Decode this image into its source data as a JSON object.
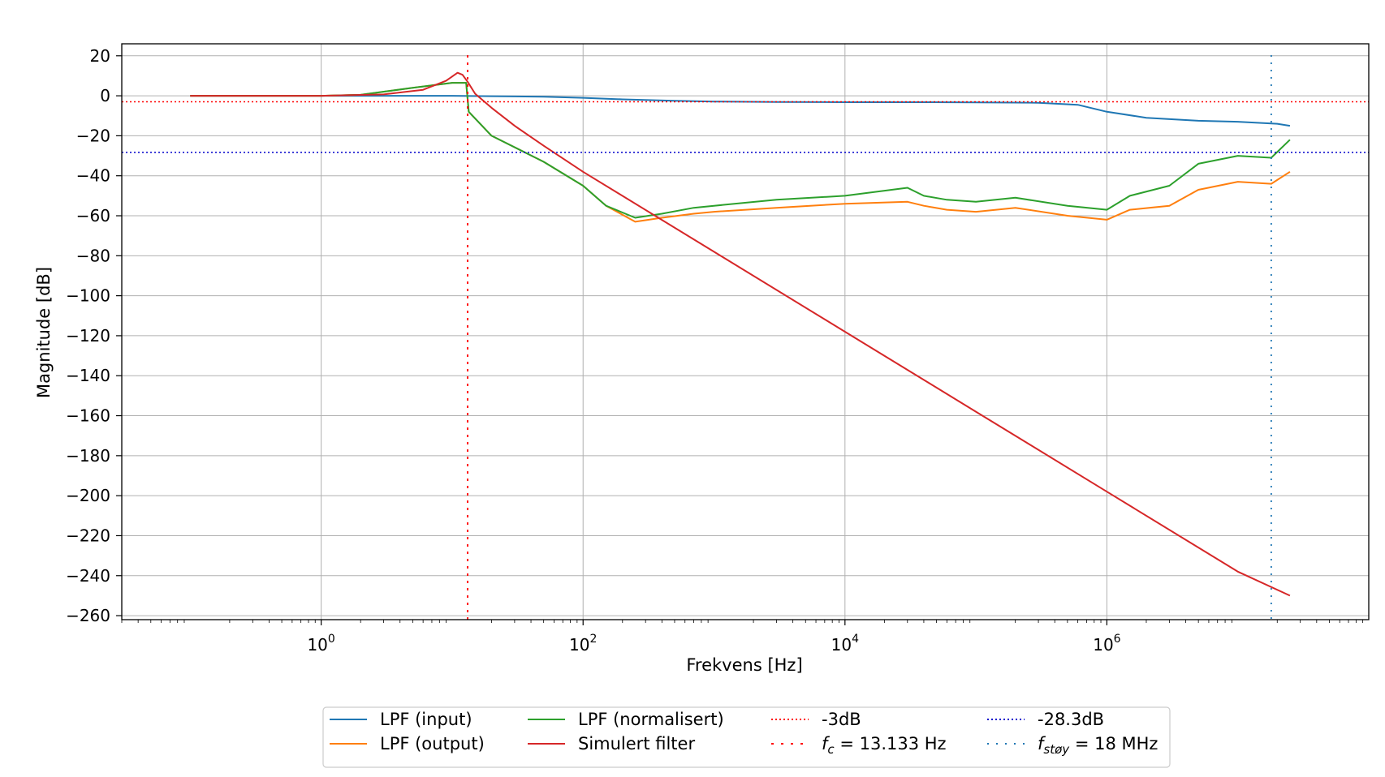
{
  "chart_data": {
    "type": "line",
    "xlabel": "Frekvens [Hz]",
    "ylabel": "Magnitude [dB]",
    "xscale": "log",
    "xlim": [
      0.03,
      100000000
    ],
    "ylim": [
      -262,
      26
    ],
    "grid": true,
    "legend_position": "bottom-center",
    "x_ticks": [
      {
        "value": 1,
        "base": "10",
        "exp": "0"
      },
      {
        "value": 100,
        "base": "10",
        "exp": "2"
      },
      {
        "value": 10000,
        "base": "10",
        "exp": "4"
      },
      {
        "value": 1000000,
        "base": "10",
        "exp": "6"
      }
    ],
    "y_ticks": [
      20,
      0,
      -20,
      -40,
      -60,
      -80,
      -100,
      -120,
      -140,
      -160,
      -180,
      -200,
      -220,
      -240,
      -260
    ],
    "y_tick_labels": [
      "20",
      "0",
      "−20",
      "−40",
      "−60",
      "−80",
      "−100",
      "−120",
      "−140",
      "−160",
      "−180",
      "−200",
      "−220",
      "−240",
      "−260"
    ],
    "series": [
      {
        "name": "LPF (input)",
        "color": "#1f77b4",
        "x": [
          0.1,
          1,
          3,
          10,
          20,
          50,
          100,
          200,
          500,
          1000,
          3000,
          10000,
          30000,
          100000,
          300000,
          600000,
          1000000,
          2000000,
          5000000,
          10000000,
          20000000,
          25000000
        ],
        "y": [
          0,
          0,
          0,
          0,
          -0.2,
          -0.5,
          -1,
          -1.8,
          -2.5,
          -2.9,
          -3.1,
          -3.2,
          -3.2,
          -3.3,
          -3.5,
          -4.5,
          -8,
          -11,
          -12.5,
          -13,
          -14,
          -15
        ]
      },
      {
        "name": "LPF (output)",
        "color": "#ff7f0e",
        "x": [
          0.1,
          1,
          2,
          5,
          10,
          12.8,
          13.4,
          20,
          50,
          100,
          150,
          250,
          400,
          700,
          1000,
          3000,
          10000,
          30000,
          40000,
          60000,
          100000,
          200000,
          500000,
          1000000,
          1500000,
          3000000,
          5000000,
          10000000,
          18000000,
          25000000
        ],
        "y": [
          0,
          0,
          0.5,
          4,
          6.5,
          6.5,
          -8,
          -20,
          -33,
          -45,
          -55,
          -63,
          -61,
          -59,
          -58,
          -56,
          -54,
          -53,
          -55,
          -57,
          -58,
          -56,
          -60,
          -62,
          -57,
          -55,
          -47,
          -43,
          -44,
          -38
        ]
      },
      {
        "name": "LPF (normalisert)",
        "color": "#2ca02c",
        "x": [
          0.1,
          1,
          2,
          5,
          10,
          12.8,
          13.4,
          20,
          50,
          100,
          150,
          250,
          400,
          700,
          1000,
          3000,
          10000,
          30000,
          40000,
          60000,
          100000,
          200000,
          500000,
          1000000,
          1500000,
          3000000,
          5000000,
          10000000,
          18000000,
          25000000
        ],
        "y": [
          0,
          0,
          0.5,
          4,
          6.5,
          6.5,
          -8,
          -20,
          -33,
          -45,
          -55,
          -61,
          -59,
          -56,
          -55,
          -52,
          -50,
          -46,
          -50,
          -52,
          -53,
          -51,
          -55,
          -57,
          -50,
          -45,
          -34,
          -30,
          -31,
          -22
        ]
      },
      {
        "name": "Simulert filter",
        "color": "#d62728",
        "x": [
          0.1,
          1,
          3,
          6,
          9,
          11,
          12,
          13.133,
          15,
          20,
          30,
          50,
          100,
          1000,
          10000,
          100000,
          1000000,
          10000000,
          25000000
        ],
        "y": [
          0,
          0,
          0.7,
          3,
          7.5,
          11.5,
          10.5,
          7,
          1,
          -6,
          -15,
          -25,
          -38,
          -78,
          -118,
          -158,
          -198,
          -238,
          -250
        ]
      },
      {
        "name": "-3dB",
        "color": "#ff0000",
        "style": "dotted",
        "orientation": "horizontal",
        "value": -3
      },
      {
        "name": "-28.3dB",
        "color": "#0000cc",
        "style": "dotted",
        "orientation": "horizontal",
        "value": -28.3
      },
      {
        "name": "fc",
        "color": "#ff0000",
        "style": "dashed",
        "orientation": "vertical",
        "value": 13.133
      },
      {
        "name": "fstøy",
        "color": "#1f77b4",
        "style": "dotted",
        "orientation": "vertical",
        "value": 18000000
      }
    ]
  },
  "legend": {
    "items": [
      {
        "label": "LPF (input)",
        "color": "#1f77b4",
        "style": "solid"
      },
      {
        "label": "LPF (output)",
        "color": "#ff7f0e",
        "style": "solid"
      },
      {
        "label": "LPF (normalisert)",
        "color": "#2ca02c",
        "style": "solid"
      },
      {
        "label": "Simulert filter",
        "color": "#d62728",
        "style": "solid"
      },
      {
        "label": "-3dB",
        "color": "#ff0000",
        "style": "dotted"
      },
      {
        "label_sym": "f",
        "label_sub": "c",
        "label_rest": " = 13.133 Hz",
        "color": "#ff0000",
        "style": "dashed"
      },
      {
        "label": "-28.3dB",
        "color": "#0000cc",
        "style": "dotted"
      },
      {
        "label_sym": "f",
        "label_sub": "støy",
        "label_rest": " = 18 MHz",
        "color": "#1f77b4",
        "style": "dotted2"
      }
    ]
  }
}
